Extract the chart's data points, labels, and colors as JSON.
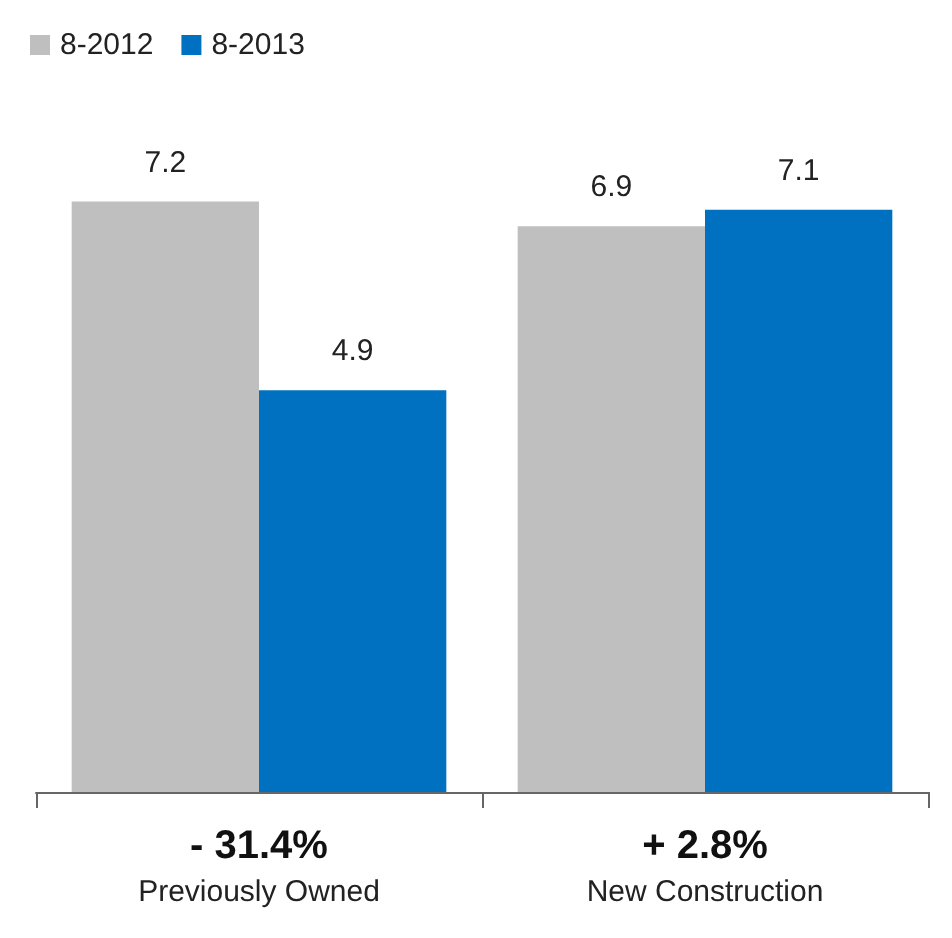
{
  "chart_data": {
    "type": "bar",
    "categories": [
      "Previously Owned",
      "New Construction"
    ],
    "series": [
      {
        "name": "8-2012",
        "color": "#bfbfbf",
        "values": [
          7.2,
          6.9
        ]
      },
      {
        "name": "8-2013",
        "color": "#0070c0",
        "values": [
          4.9,
          7.1
        ]
      }
    ],
    "annotations": [
      "- 31.4%",
      "+ 2.8%"
    ],
    "data_labels": true,
    "legend": "top left"
  }
}
